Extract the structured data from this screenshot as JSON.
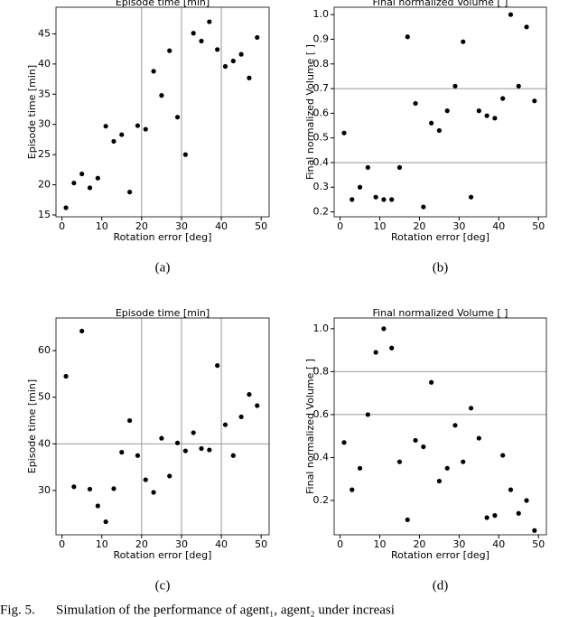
{
  "chart_data": [
    {
      "type": "scatter",
      "title": "Episode time [min]",
      "xlabel": "Rotation error [deg]",
      "ylabel": "Episode time [min]",
      "panel": "(a)",
      "color": "#000000",
      "x": [
        1,
        3,
        5,
        7,
        9,
        11,
        13,
        15,
        17,
        19,
        21,
        23,
        25,
        27,
        29,
        31,
        33,
        35,
        37,
        39,
        41,
        43,
        45,
        47,
        49
      ],
      "values": [
        16.2,
        20.3,
        21.8,
        19.5,
        21.1,
        29.7,
        27.2,
        28.3,
        18.8,
        29.8,
        29.2,
        38.8,
        34.8,
        42.2,
        31.2,
        25.0,
        45.1,
        43.8,
        47.0,
        42.4,
        39.6,
        40.5,
        41.6,
        37.7,
        44.4
      ],
      "xlim": [
        -1.5,
        52
      ],
      "xticks": [
        0,
        10,
        20,
        30,
        40,
        50
      ],
      "ylim": [
        14.7,
        49.4
      ],
      "yticks": [
        15,
        20,
        25,
        30,
        35,
        40,
        45
      ],
      "grid": {
        "x": [
          20,
          30,
          40
        ],
        "y": []
      }
    },
    {
      "type": "scatter",
      "title": "Final normalized Volume [ ]",
      "xlabel": "Rotation error [deg]",
      "ylabel": "Final normalized Volume [ ]",
      "panel": "(b)",
      "color": "#000000",
      "x": [
        1,
        3,
        5,
        7,
        9,
        11,
        13,
        15,
        17,
        19,
        21,
        23,
        25,
        27,
        29,
        31,
        33,
        35,
        37,
        39,
        41,
        43,
        45,
        47,
        49
      ],
      "values": [
        0.52,
        0.25,
        0.3,
        0.38,
        0.26,
        0.25,
        0.25,
        0.38,
        0.91,
        0.64,
        0.22,
        0.56,
        0.53,
        0.61,
        0.71,
        0.89,
        0.26,
        0.61,
        0.59,
        0.58,
        0.66,
        1.0,
        0.71,
        0.95,
        0.65
      ],
      "xlim": [
        -1.5,
        52
      ],
      "xticks": [
        0,
        10,
        20,
        30,
        40,
        50
      ],
      "ylim": [
        0.18,
        1.03
      ],
      "yticks": [
        0.2,
        0.3,
        0.4,
        0.5,
        0.6,
        0.7,
        0.8,
        0.9,
        {
          "value": 1,
          "label": "1.0"
        }
      ],
      "grid": {
        "x": [],
        "y": [
          0.4,
          0.7
        ]
      }
    },
    {
      "type": "scatter",
      "title": "Episode time [min]",
      "xlabel": "Rotation error [deg]",
      "ylabel": "Episode time [min]",
      "panel": "(c)",
      "color": "#000000",
      "x": [
        1,
        3,
        5,
        7,
        9,
        11,
        13,
        15,
        17,
        19,
        21,
        23,
        25,
        27,
        29,
        31,
        33,
        35,
        37,
        39,
        41,
        43,
        45,
        47,
        49
      ],
      "values": [
        54.5,
        30.8,
        64.2,
        30.3,
        26.7,
        23.3,
        30.4,
        38.2,
        45.0,
        37.5,
        32.3,
        29.6,
        41.2,
        33.1,
        40.2,
        38.5,
        42.4,
        39.0,
        38.7,
        56.8,
        44.1,
        37.5,
        45.8,
        50.6,
        48.2
      ],
      "xlim": [
        -1.5,
        52
      ],
      "xticks": [
        0,
        10,
        20,
        30,
        40,
        50
      ],
      "ylim": [
        20.5,
        67
      ],
      "yticks": [
        30,
        40,
        50,
        60
      ],
      "grid": {
        "x": [
          20,
          30,
          40
        ],
        "y": [
          40
        ]
      }
    },
    {
      "type": "scatter",
      "title": "Final normalized Volume [ ]",
      "xlabel": "Rotation error [deg]",
      "ylabel": "Final normalized Volume [ ]",
      "panel": "(d)",
      "color": "#000000",
      "x": [
        1,
        3,
        5,
        7,
        9,
        11,
        13,
        15,
        17,
        19,
        21,
        23,
        25,
        27,
        29,
        31,
        33,
        35,
        37,
        39,
        41,
        43,
        45,
        47,
        49
      ],
      "values": [
        0.47,
        0.25,
        0.35,
        0.6,
        0.89,
        1.0,
        0.91,
        0.38,
        0.11,
        0.48,
        0.45,
        0.75,
        0.29,
        0.35,
        0.55,
        0.38,
        0.63,
        0.49,
        0.12,
        0.13,
        0.41,
        0.25,
        0.14,
        0.2,
        0.06
      ],
      "xlim": [
        -1.5,
        52
      ],
      "xticks": [
        0,
        10,
        20,
        30,
        40,
        50
      ],
      "ylim": [
        0.04,
        1.05
      ],
      "yticks": [
        0.2,
        0.4,
        0.6,
        0.8,
        {
          "value": 1,
          "label": "1.0"
        }
      ],
      "grid": {
        "x": [],
        "y": [
          0.6,
          0.8
        ]
      }
    }
  ],
  "caption": {
    "label": "Fig. 5.",
    "text": "Simulation of the performance of agent₁, agent₂ under increasi"
  }
}
